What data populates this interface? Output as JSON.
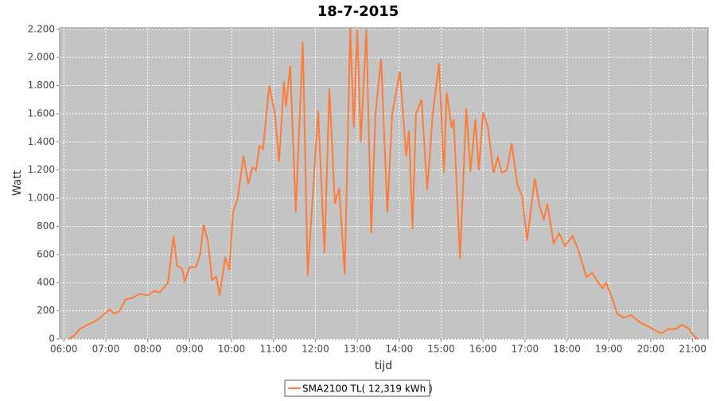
{
  "chart_data": {
    "type": "line",
    "title": "18-7-2015",
    "x_label": "tijd",
    "y_label": "Watt",
    "x": [
      "06:07",
      "06:14",
      "06:23",
      "06:34",
      "06:46",
      "06:57",
      "07:05",
      "07:12",
      "07:20",
      "07:28",
      "07:37",
      "07:49",
      "08:00",
      "08:09",
      "08:17",
      "08:29",
      "08:37",
      "08:42",
      "08:49",
      "08:53",
      "09:00",
      "09:09",
      "09:15",
      "09:20",
      "09:26",
      "09:32",
      "09:38",
      "09:43",
      "09:51",
      "09:57",
      "10:02",
      "10:09",
      "10:17",
      "10:24",
      "10:30",
      "10:35",
      "10:40",
      "10:45",
      "10:54",
      "11:02",
      "11:08",
      "11:15",
      "11:18",
      "11:24",
      "11:32",
      "11:42",
      "11:49",
      "11:56",
      "12:04",
      "12:13",
      "12:20",
      "12:28",
      "12:34",
      "12:42",
      "12:50",
      "12:55",
      "13:00",
      "13:05",
      "13:13",
      "13:20",
      "13:26",
      "13:34",
      "13:43",
      "13:50",
      "14:01",
      "14:10",
      "14:14",
      "14:19",
      "14:24",
      "14:32",
      "14:40",
      "14:48",
      "14:57",
      "15:04",
      "15:08",
      "15:15",
      "15:18",
      "15:27",
      "15:36",
      "15:42",
      "15:49",
      "15:54",
      "16:00",
      "16:07",
      "16:15",
      "16:21",
      "16:27",
      "16:34",
      "16:41",
      "16:49",
      "16:56",
      "17:03",
      "17:14",
      "17:21",
      "17:27",
      "17:32",
      "17:41",
      "17:49",
      "17:57",
      "18:08",
      "18:15",
      "18:28",
      "18:36",
      "18:45",
      "18:51",
      "18:56",
      "19:04",
      "19:12",
      "19:21",
      "19:32",
      "19:44",
      "19:56",
      "20:07",
      "20:16",
      "20:25",
      "20:36",
      "20:44",
      "20:53",
      "21:02",
      "21:07"
    ],
    "series": [
      {
        "name": "SMA2100 TL( 12,319 kWh )",
        "color": "#ff7b3a",
        "values": [
          0,
          20,
          70,
          100,
          130,
          170,
          210,
          180,
          200,
          280,
          290,
          320,
          310,
          340,
          330,
          400,
          730,
          520,
          500,
          410,
          510,
          510,
          600,
          810,
          700,
          420,
          440,
          310,
          580,
          490,
          900,
          1000,
          1300,
          1100,
          1220,
          1200,
          1370,
          1350,
          1800,
          1600,
          1260,
          1830,
          1650,
          1940,
          900,
          2110,
          450,
          1000,
          1620,
          610,
          1780,
          960,
          1070,
          460,
          2210,
          1500,
          2200,
          1400,
          2200,
          750,
          1600,
          1990,
          900,
          1600,
          1900,
          1300,
          1480,
          780,
          1600,
          1700,
          1060,
          1600,
          1960,
          1180,
          1750,
          1500,
          1560,
          570,
          1640,
          1190,
          1560,
          1200,
          1610,
          1500,
          1180,
          1290,
          1180,
          1200,
          1390,
          1100,
          1010,
          700,
          1140,
          940,
          850,
          960,
          680,
          750,
          660,
          730,
          650,
          440,
          470,
          400,
          360,
          400,
          300,
          180,
          150,
          170,
          120,
          90,
          60,
          40,
          70,
          70,
          100,
          80,
          20,
          0
        ]
      }
    ],
    "xlim": [
      "05:54",
      "21:22"
    ],
    "xticks": [
      "06:00",
      "07:00",
      "08:00",
      "09:00",
      "10:00",
      "11:00",
      "12:00",
      "13:00",
      "14:00",
      "15:00",
      "16:00",
      "17:00",
      "18:00",
      "19:00",
      "20:00",
      "21:00"
    ],
    "ylim": [
      0,
      2210
    ],
    "yticks": [
      0,
      200,
      400,
      600,
      800,
      {
        "value": 1000,
        "label": "1.000"
      },
      {
        "value": 1200,
        "label": "1.200"
      },
      {
        "value": 1400,
        "label": "1.400"
      },
      {
        "value": 1600,
        "label": "1.600"
      },
      {
        "value": 1800,
        "label": "1.800"
      },
      {
        "value": 2000,
        "label": "2.000"
      },
      {
        "value": 2200,
        "label": "2.200"
      }
    ],
    "grid": true
  }
}
